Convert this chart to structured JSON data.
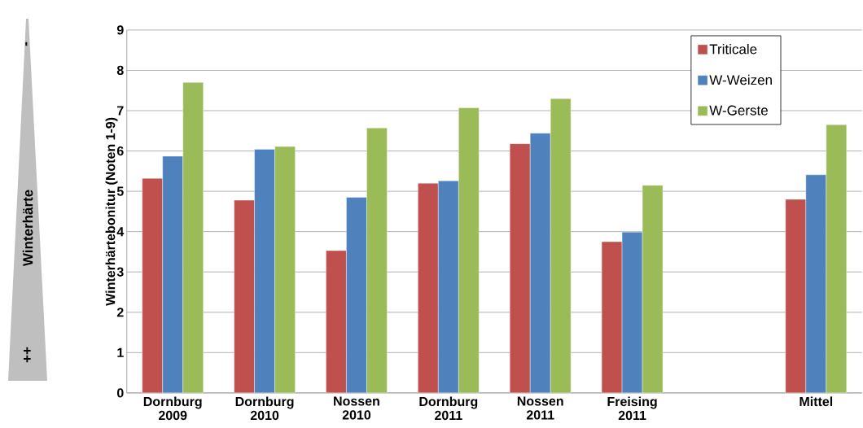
{
  "chart_data": {
    "type": "bar",
    "ylabel": "Winterhärtebonitur (Noten 1-9)",
    "categories": [
      "Dornburg 2009",
      "Dornburg 2010",
      "Nossen 2010",
      "Dornburg 2011",
      "Nossen 2011",
      "Freising 2011",
      null,
      "Mittel"
    ],
    "series": [
      {
        "name": "Triticale",
        "color": "#c0504d",
        "values": [
          5.32,
          4.78,
          3.53,
          5.2,
          6.18,
          3.75,
          null,
          4.8
        ]
      },
      {
        "name": "W-Weizen",
        "color": "#4f81bd",
        "values": [
          5.87,
          6.04,
          4.85,
          5.26,
          6.44,
          3.99,
          null,
          5.41
        ]
      },
      {
        "name": "W-Gerste",
        "color": "#9bbb59",
        "values": [
          7.7,
          6.11,
          6.57,
          7.07,
          7.3,
          5.15,
          null,
          6.65
        ]
      }
    ],
    "ylim": [
      0,
      9
    ],
    "yticks": [
      0,
      1,
      2,
      3,
      4,
      5,
      6,
      7,
      8,
      9
    ],
    "grid": "y",
    "legend": "top right",
    "annotations": [
      "Winterhärte",
      "-",
      "++"
    ]
  }
}
